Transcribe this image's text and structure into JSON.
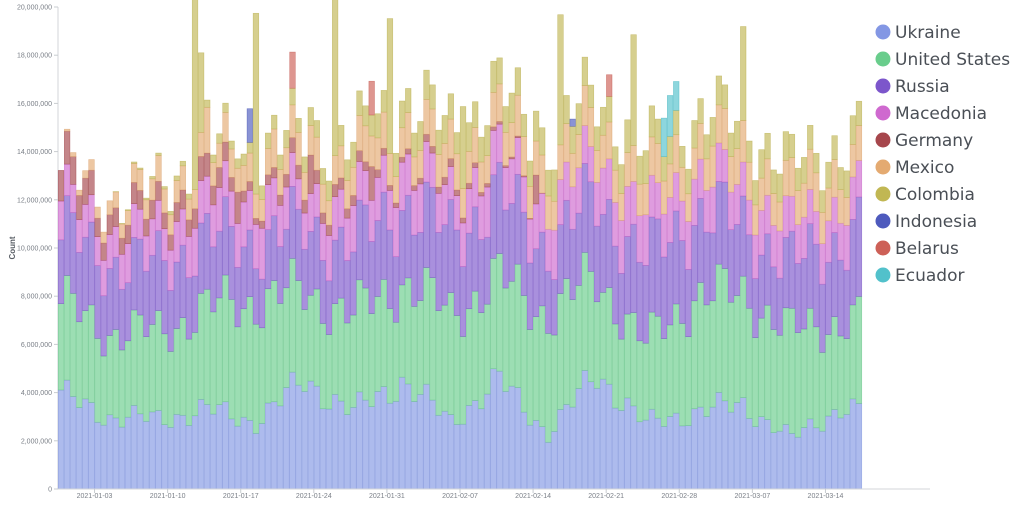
{
  "chart_data": {
    "type": "bar",
    "stacked": true,
    "ylabel": "Count",
    "xlabel": "",
    "ylim": [
      0,
      20000000
    ],
    "y_ticks": [
      0,
      2000000,
      4000000,
      6000000,
      8000000,
      10000000,
      12000000,
      14000000,
      16000000,
      18000000,
      20000000
    ],
    "y_tick_labels": [
      "0",
      "2,000,000",
      "4,000,000",
      "6,000,000",
      "8,000,000",
      "10,000,000",
      "12,000,000",
      "14,000,000",
      "16,000,000",
      "18,000,000",
      "20,000,000"
    ],
    "x_tick_labels": [
      "2021-01-03",
      "2021-01-10",
      "2021-01-17",
      "2021-01-24",
      "2021-01-31",
      "2021-02-07",
      "2021-02-14",
      "2021-02-21",
      "2021-02-28",
      "2021-03-07",
      "2021-03-14"
    ],
    "x_tick_positions": [
      6,
      18,
      30,
      42,
      54,
      66,
      78,
      90,
      102,
      114,
      126
    ],
    "bar_count": 132,
    "grid": false,
    "legend_placement": "right",
    "series": [
      {
        "name": "Ukraine",
        "color": "#7289e0"
      },
      {
        "name": "United States",
        "color": "#54c67c"
      },
      {
        "name": "Russia",
        "color": "#6a3fc4"
      },
      {
        "name": "Macedonia",
        "color": "#c854c8"
      },
      {
        "name": "Germany",
        "color": "#9a2d34"
      },
      {
        "name": "Mexico",
        "color": "#e09e5e"
      },
      {
        "name": "Colombia",
        "color": "#b8ad3c"
      },
      {
        "name": "Indonesia",
        "color": "#3644b4"
      },
      {
        "name": "Belarus",
        "color": "#c64a40"
      },
      {
        "name": "Ecuador",
        "color": "#3ab8c4"
      }
    ],
    "keyframes": {
      "positions": [
        0,
        8,
        16,
        24,
        32,
        40,
        48,
        56,
        64,
        72,
        80,
        88,
        96,
        104,
        112,
        120,
        128,
        131
      ],
      "Ukraine": [
        3900000,
        3000000,
        2900000,
        3300000,
        2800000,
        4500000,
        3200000,
        4500000,
        2800000,
        4500000,
        2300000,
        4800000,
        2700000,
        3200000,
        3500000,
        2100000,
        3400000,
        3200000
      ],
      "United States": [
        3800000,
        3500000,
        3600000,
        4200000,
        5000000,
        3700000,
        4000000,
        4100000,
        4500000,
        4200000,
        4900000,
        4000000,
        3300000,
        4800000,
        4600000,
        4400000,
        3600000,
        3800000
      ],
      "Russia": [
        3000000,
        2900000,
        2800000,
        2900000,
        2500000,
        2600000,
        2900000,
        3300000,
        3300000,
        3400000,
        2800000,
        3300000,
        3500000,
        3400000,
        2900000,
        2800000,
        3400000,
        3700000
      ],
      "Macedonia": [
        1400000,
        1300000,
        1500000,
        1700000,
        1800000,
        1500000,
        1700000,
        1800000,
        1600000,
        1800000,
        1700000,
        1800000,
        1900000,
        1700000,
        1600000,
        1700000,
        1500000,
        1700000
      ],
      "Germany": [
        1200000,
        800000,
        700000,
        900000,
        300000,
        600000,
        400000,
        200000,
        300000,
        100000,
        0,
        0,
        0,
        0,
        0,
        0,
        0,
        0
      ],
      "Mexico": [
        0,
        600000,
        900000,
        1000000,
        1100000,
        1200000,
        1300000,
        1300000,
        1400000,
        1400000,
        1500000,
        1400000,
        1400000,
        1400000,
        1500000,
        1400000,
        1500000,
        1300000
      ],
      "Colombia": [
        0,
        0,
        100000,
        300000,
        500000,
        700000,
        900000,
        1000000,
        1100000,
        1100000,
        1200000,
        1100000,
        1200000,
        1000000,
        1100000,
        1000000,
        1000000,
        1000000
      ],
      "Indonesia": [
        0,
        0,
        0,
        0,
        0,
        0,
        0,
        0,
        0,
        0,
        0,
        0,
        0,
        0,
        0,
        0,
        0,
        0
      ],
      "Belarus": [
        0,
        0,
        0,
        0,
        0,
        0,
        0,
        0,
        0,
        0,
        0,
        0,
        0,
        0,
        0,
        0,
        0,
        0
      ],
      "Ecuador": [
        0,
        0,
        0,
        0,
        0,
        0,
        0,
        0,
        0,
        0,
        0,
        0,
        0,
        0,
        0,
        0,
        0,
        0
      ]
    },
    "spikes": {
      "Colombia": [
        [
          22,
          8300000
        ],
        [
          23,
          3300000
        ],
        [
          32,
          7500000
        ],
        [
          45,
          6700000
        ],
        [
          54,
          5600000
        ],
        [
          66,
          3400000
        ],
        [
          82,
          5400000
        ],
        [
          94,
          4600000
        ],
        [
          112,
          3900000
        ]
      ],
      "Mexico": [
        [
          24,
          1900000
        ],
        [
          35,
          1600000
        ],
        [
          57,
          1500000
        ],
        [
          93,
          1400000
        ],
        [
          107,
          1700000
        ]
      ],
      "Germany": [
        [
          29,
          1300000
        ],
        [
          41,
          1600000
        ],
        [
          51,
          1400000
        ],
        [
          78,
          1200000
        ]
      ],
      "Indonesia": [
        [
          31,
          1400000
        ],
        [
          84,
          300000
        ]
      ],
      "Belarus": [
        [
          38,
          1500000
        ],
        [
          51,
          1400000
        ],
        [
          90,
          900000
        ]
      ],
      "Ecuador": [
        [
          99,
          1600000
        ],
        [
          100,
          1700000
        ],
        [
          101,
          1200000
        ]
      ]
    }
  }
}
